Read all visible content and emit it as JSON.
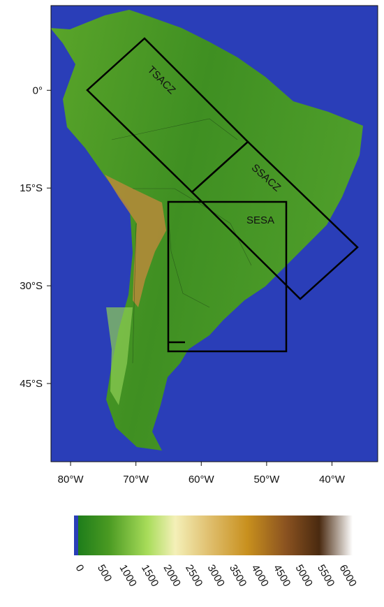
{
  "map": {
    "xlim": [
      -83,
      -33
    ],
    "ylim": [
      -57,
      13
    ],
    "xticks": [
      {
        "value": -80,
        "label": "80°W"
      },
      {
        "value": -70,
        "label": "70°W"
      },
      {
        "value": -60,
        "label": "60°W"
      },
      {
        "value": -50,
        "label": "50°W"
      },
      {
        "value": -40,
        "label": "40°W"
      }
    ],
    "yticks": [
      {
        "value": 0,
        "label": "0°"
      },
      {
        "value": -15,
        "label": "15°S"
      },
      {
        "value": -30,
        "label": "30°S"
      },
      {
        "value": -45,
        "label": "45°S"
      }
    ],
    "regions": [
      "TSACZ",
      "SSACZ",
      "SESA"
    ],
    "colorbar": {
      "ticks": [
        0,
        500,
        1000,
        1500,
        2000,
        2500,
        3000,
        3500,
        4000,
        4500,
        5000,
        5500,
        6000
      ]
    }
  }
}
